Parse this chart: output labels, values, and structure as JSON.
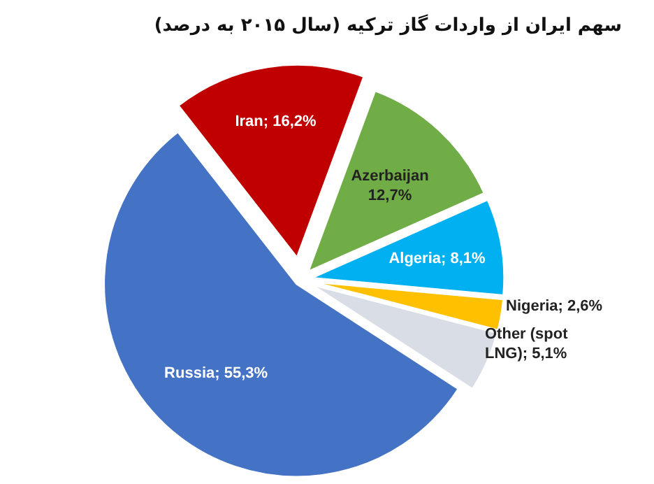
{
  "chart_data": {
    "type": "pie",
    "title": "سهم ایران از واردات گاز ترکیه (سال ۲۰۱۵ به درصد)",
    "categories": [
      "Iran",
      "Azerbaijan",
      "Algeria",
      "Nigeria",
      "Other (spot LNG)",
      "Russia"
    ],
    "values": [
      16.2,
      12.7,
      8.1,
      2.6,
      5.1,
      55.3
    ],
    "value_labels": [
      "16,2%",
      "12,7%",
      "8,1%",
      "2,6%",
      "5,1%",
      "55,3%"
    ],
    "colors": [
      "#c00000",
      "#70ad47",
      "#00b0f0",
      "#ffc000",
      "#d9dde6",
      "#4472c4"
    ]
  }
}
